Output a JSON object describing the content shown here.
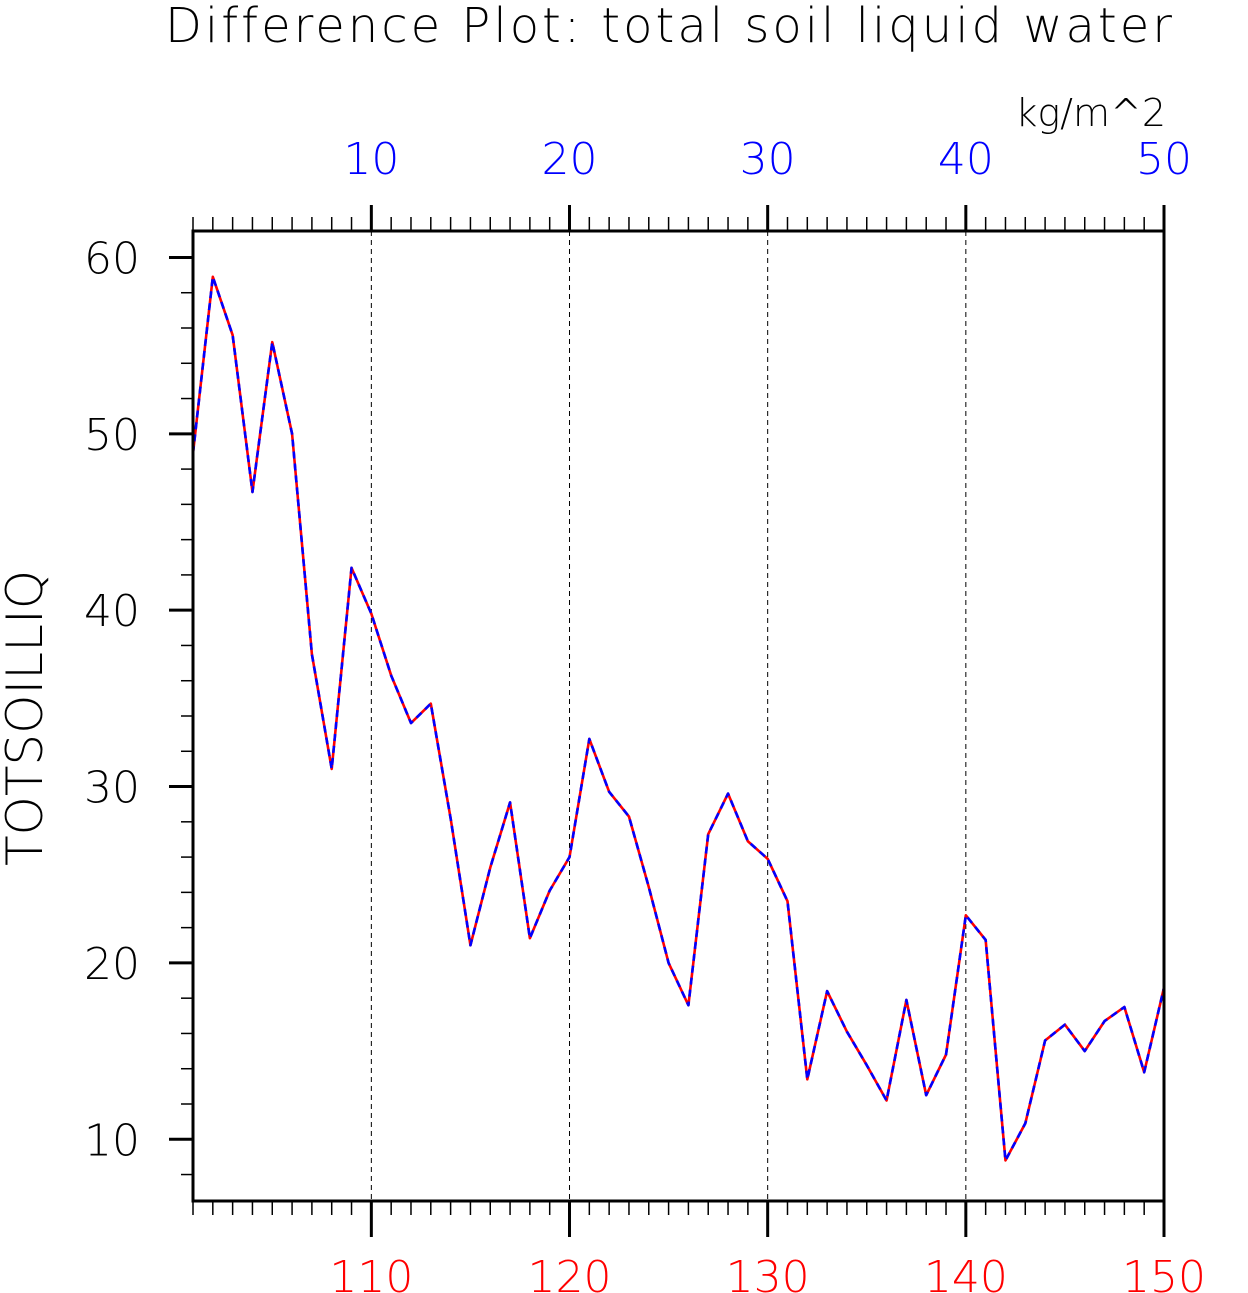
{
  "chart_data": {
    "type": "line",
    "title": "Difference Plot: total soil liquid water",
    "units": "kg/m^2",
    "ylabel": "TOTSOILLIQ",
    "xlabel": "",
    "bottom_axis": {
      "range": [
        101,
        150
      ],
      "ticks": [
        110,
        120,
        130,
        140,
        150
      ],
      "tick_labels": [
        "110",
        "120",
        "130",
        "140",
        "150"
      ],
      "color": "#ff0000"
    },
    "top_axis": {
      "range": [
        1,
        50
      ],
      "ticks": [
        10,
        20,
        30,
        40,
        50
      ],
      "tick_labels": [
        "10",
        "20",
        "30",
        "40",
        "50"
      ],
      "color": "#0000ff"
    },
    "ylim": [
      6.5,
      61.5
    ],
    "y_ticks": [
      10,
      20,
      30,
      40,
      50,
      60
    ],
    "y_tick_labels": [
      "10",
      "20",
      "30",
      "40",
      "50",
      "60"
    ],
    "grid": "vertical dashed lines at major x ticks",
    "series": [
      {
        "color": "#ff0000",
        "style": "solid",
        "x": [
          101,
          102,
          103,
          104,
          105,
          106,
          107,
          108,
          109,
          110,
          111,
          112,
          113,
          114,
          115,
          116,
          117,
          118,
          119,
          120,
          121,
          122,
          123,
          124,
          125,
          126,
          127,
          128,
          129,
          130,
          131,
          132,
          133,
          134,
          135,
          136,
          137,
          138,
          139,
          140,
          141,
          142,
          143,
          144,
          145,
          146,
          147,
          148,
          149,
          150
        ],
        "values": [
          48.9,
          58.9,
          55.6,
          46.7,
          55.2,
          50.0,
          37.5,
          31.0,
          42.4,
          39.8,
          36.3,
          33.6,
          34.7,
          28.2,
          21.0,
          25.4,
          29.1,
          21.4,
          24.1,
          26.0,
          32.7,
          29.7,
          28.3,
          24.3,
          20.0,
          17.6,
          27.3,
          29.6,
          26.9,
          25.9,
          23.5,
          13.4,
          18.4,
          16.1,
          14.2,
          12.2,
          17.9,
          12.5,
          14.8,
          22.7,
          21.3,
          8.8,
          10.9,
          15.6,
          16.5,
          15.0,
          16.7,
          17.5,
          13.8,
          18.6
        ]
      },
      {
        "color": "#0000ff",
        "style": "dashed",
        "x": [
          1,
          2,
          3,
          4,
          5,
          6,
          7,
          8,
          9,
          10,
          11,
          12,
          13,
          14,
          15,
          16,
          17,
          18,
          19,
          20,
          21,
          22,
          23,
          24,
          25,
          26,
          27,
          28,
          29,
          30,
          31,
          32,
          33,
          34,
          35,
          36,
          37,
          38,
          39,
          40,
          41,
          42,
          43,
          44,
          45,
          46,
          47,
          48,
          49,
          50
        ],
        "values": [
          48.9,
          58.9,
          55.6,
          46.7,
          55.2,
          50.0,
          37.5,
          31.0,
          42.4,
          39.8,
          36.3,
          33.6,
          34.7,
          28.2,
          21.0,
          25.4,
          29.1,
          21.4,
          24.1,
          26.0,
          32.7,
          29.7,
          28.3,
          24.3,
          20.0,
          17.6,
          27.3,
          29.6,
          26.9,
          25.9,
          23.5,
          13.4,
          18.4,
          16.1,
          14.2,
          12.2,
          17.9,
          12.5,
          14.8,
          22.7,
          21.3,
          8.8,
          10.9,
          15.6,
          16.5,
          15.0,
          16.7,
          17.5,
          13.8,
          18.6
        ]
      }
    ],
    "colors": {
      "frame": "#000000",
      "grid": "#000000",
      "line_red": "#ff0000",
      "line_blue": "#0000ff"
    }
  }
}
